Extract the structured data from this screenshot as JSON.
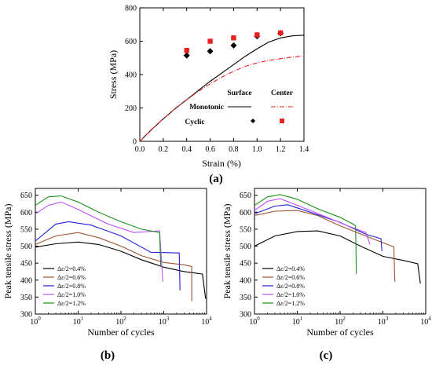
{
  "panel_labels": {
    "a": "(a)",
    "b": "(b)",
    "c": "(c)"
  },
  "chart_data": [
    {
      "panel": "a",
      "type": "line",
      "xlabel": "Strain (%)",
      "ylabel": "Stress (MPa)",
      "xlim": [
        0,
        1.4
      ],
      "ylim": [
        0,
        800
      ],
      "x_ticks": [
        "0.0",
        "0.2",
        "0.4",
        "0.6",
        "0.8",
        "1.0",
        "1.2",
        "1.4"
      ],
      "y_ticks": [
        "0",
        "200",
        "400",
        "600",
        "800"
      ],
      "legend": {
        "position": "bottom-right",
        "col_headers": [
          "Surface",
          "Center"
        ],
        "row_labels": [
          "Monotonic",
          "Cyclic"
        ]
      },
      "series": [
        {
          "key": "mono_surface",
          "color": "#000000",
          "style": "solid",
          "x": [
            0,
            0.1,
            0.2,
            0.3,
            0.4,
            0.5,
            0.6,
            0.7,
            0.8,
            0.9,
            1.0,
            1.1,
            1.2,
            1.3,
            1.4
          ],
          "y": [
            0,
            70,
            135,
            195,
            250,
            305,
            360,
            410,
            460,
            510,
            555,
            595,
            620,
            632,
            636
          ]
        },
        {
          "key": "mono_center",
          "color": "#e8201f",
          "style": "dashdot",
          "x": [
            0,
            0.1,
            0.2,
            0.3,
            0.4,
            0.5,
            0.6,
            0.7,
            0.8,
            0.9,
            1.0,
            1.1,
            1.2,
            1.3,
            1.4
          ],
          "y": [
            0,
            70,
            135,
            195,
            250,
            300,
            345,
            385,
            420,
            450,
            470,
            485,
            495,
            505,
            512
          ]
        },
        {
          "key": "cyclic_surface",
          "color": "#000000",
          "marker": "diamond",
          "x": [
            0.4,
            0.6,
            0.8,
            1.0,
            1.2
          ],
          "y": [
            515,
            540,
            575,
            630,
            648
          ]
        },
        {
          "key": "cyclic_center",
          "color": "#e8201f",
          "marker": "square",
          "x": [
            0.4,
            0.6,
            0.8,
            1.0,
            1.2
          ],
          "y": [
            545,
            600,
            620,
            638,
            650
          ]
        }
      ]
    },
    {
      "panel": "b",
      "type": "line",
      "xlabel": "Number of cycles",
      "ylabel": "Peak tensile stress (MPa)",
      "xscale": "log",
      "xlim": [
        1,
        10000
      ],
      "ylim": [
        300,
        670
      ],
      "x_ticks": [
        "10",
        "10",
        "10",
        "10",
        "10"
      ],
      "x_tick_exponents": [
        "0",
        "1",
        "2",
        "3",
        "4"
      ],
      "y_ticks": [
        "300",
        "350",
        "400",
        "450",
        "500",
        "550",
        "600",
        "650"
      ],
      "legend": {
        "position": "bottom-left"
      },
      "series": [
        {
          "name": "Δε/2=0.4%",
          "color": "#000000",
          "x": [
            1,
            3,
            10,
            30,
            100,
            300,
            1000,
            3000,
            8000,
            9500
          ],
          "y": [
            497,
            507,
            512,
            505,
            485,
            460,
            438,
            425,
            418,
            345
          ]
        },
        {
          "name": "Δε/2=0.6%",
          "color": "#a0522d",
          "x": [
            1,
            3,
            10,
            30,
            100,
            300,
            1000,
            3000,
            4500,
            4500
          ],
          "y": [
            505,
            530,
            540,
            525,
            500,
            472,
            452,
            445,
            440,
            338
          ]
        },
        {
          "name": "Δε/2=0.8%",
          "color": "#1f1fd6",
          "x": [
            1,
            3,
            6,
            20,
            100,
            500,
            2300,
            2400
          ],
          "y": [
            515,
            565,
            572,
            562,
            530,
            482,
            480,
            370
          ]
        },
        {
          "name": "Δε/2=1.0%",
          "color": "#c04dff",
          "x": [
            1,
            2,
            4,
            10,
            50,
            200,
            800,
            950
          ],
          "y": [
            595,
            620,
            630,
            608,
            565,
            540,
            545,
            395
          ]
        },
        {
          "name": "Δε/2=1.2%",
          "color": "#1a8f1a",
          "x": [
            1,
            2,
            4,
            10,
            30,
            100,
            300,
            800,
            850
          ],
          "y": [
            620,
            645,
            648,
            630,
            600,
            572,
            550,
            540,
            440
          ]
        }
      ]
    },
    {
      "panel": "c",
      "type": "line",
      "xlabel": "Number of cycles",
      "ylabel": "Peak tensile stress (MPa)",
      "xscale": "log",
      "xlim": [
        1,
        10000
      ],
      "ylim": [
        300,
        670
      ],
      "x_ticks": [
        "10",
        "10",
        "10",
        "10",
        "10"
      ],
      "x_tick_exponents": [
        "0",
        "1",
        "2",
        "3",
        "4"
      ],
      "y_ticks": [
        "300",
        "350",
        "400",
        "450",
        "500",
        "550",
        "600",
        "650"
      ],
      "legend": {
        "position": "bottom-left"
      },
      "series": [
        {
          "name": "Δε/2=0.4%",
          "color": "#000000",
          "x": [
            1,
            3,
            10,
            30,
            100,
            300,
            1000,
            3000,
            6500,
            7500
          ],
          "y": [
            500,
            530,
            543,
            545,
            530,
            500,
            470,
            458,
            448,
            390
          ]
        },
        {
          "name": "Δε/2=0.6%",
          "color": "#a0522d",
          "x": [
            1,
            3,
            10,
            30,
            100,
            500,
            1800,
            1900
          ],
          "y": [
            590,
            603,
            605,
            590,
            560,
            525,
            498,
            395
          ]
        },
        {
          "name": "Δε/2=0.8%",
          "color": "#1f1fd6",
          "x": [
            1,
            3,
            6,
            20,
            100,
            400,
            900,
            950
          ],
          "y": [
            595,
            618,
            622,
            600,
            570,
            535,
            522,
            485
          ]
        },
        {
          "name": "Δε/2=1.0%",
          "color": "#c04dff",
          "x": [
            1,
            2,
            4,
            10,
            40,
            150,
            400,
            500
          ],
          "y": [
            605,
            632,
            640,
            620,
            590,
            560,
            540,
            505
          ]
        },
        {
          "name": "Δε/2=1.2%",
          "color": "#1a8f1a",
          "x": [
            1,
            2,
            4,
            10,
            30,
            100,
            200,
            230,
            240
          ],
          "y": [
            620,
            645,
            652,
            638,
            610,
            585,
            565,
            560,
            418
          ]
        }
      ]
    }
  ]
}
